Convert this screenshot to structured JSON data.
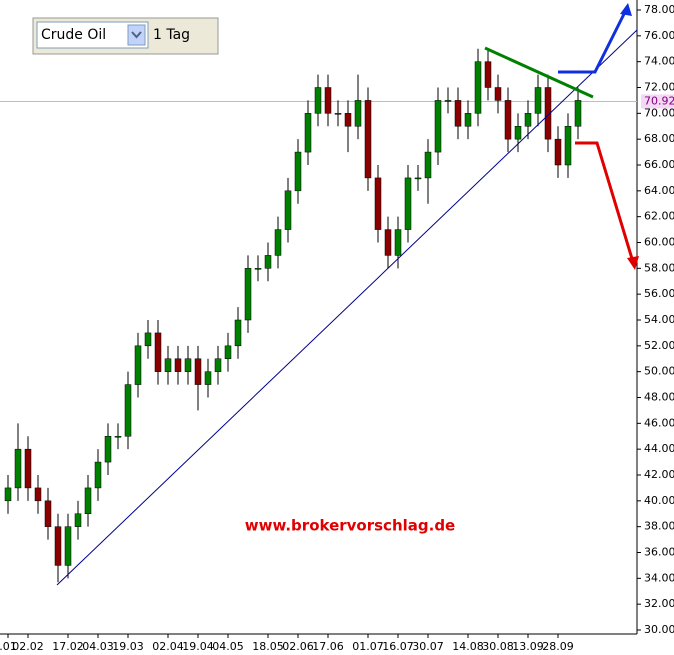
{
  "chart_data": {
    "type": "candlestick",
    "symbol": "Crude Oil",
    "interval": "1 Tag",
    "annotation": "www.brokervorschlag.de",
    "current_price": 70.92,
    "up_color": "#008000",
    "down_color": "#8b0000",
    "categories": [
      ".01",
      null,
      "02.02",
      null,
      null,
      null,
      "17.02",
      null,
      null,
      "04.03",
      null,
      null,
      "19.03",
      null,
      null,
      null,
      "02.04",
      null,
      null,
      "19.04",
      null,
      null,
      "04.05",
      null,
      null,
      null,
      "18.05",
      null,
      null,
      "02.06",
      null,
      null,
      "17.06",
      null,
      null,
      null,
      "01.07",
      null,
      null,
      "16.07",
      null,
      null,
      "30.07",
      null,
      null,
      null,
      "14.08",
      null,
      null,
      "30.08",
      null,
      null,
      "13.09",
      null,
      null,
      "28.09",
      null,
      null
    ],
    "open": [
      40,
      41,
      44,
      41,
      40,
      38,
      35,
      38,
      39,
      41,
      43,
      45,
      45,
      49,
      52,
      53,
      50,
      51,
      50,
      51,
      49,
      50,
      51,
      52,
      54,
      58,
      58,
      59,
      61,
      64,
      67,
      70,
      72,
      70,
      70,
      69,
      71,
      65,
      61,
      59,
      61,
      65,
      65,
      67,
      71,
      71,
      69,
      70,
      74,
      72,
      71,
      68,
      69,
      70,
      72,
      68,
      66,
      69
    ],
    "high": [
      42,
      46,
      45,
      42,
      41,
      39,
      39,
      40,
      42,
      44,
      46,
      46,
      50,
      53,
      54,
      54,
      52,
      52,
      52,
      52,
      51,
      52,
      53,
      55,
      59,
      59,
      60,
      62,
      65,
      68,
      71,
      73,
      73,
      71,
      71,
      73,
      72,
      66,
      62,
      62,
      66,
      66,
      68,
      72,
      72,
      72,
      71,
      75,
      75,
      73,
      72,
      70,
      71,
      73,
      73,
      69,
      70,
      72
    ],
    "low": [
      39,
      40,
      40,
      39,
      37,
      33.7,
      34,
      37,
      38,
      40,
      42,
      44,
      44,
      48,
      51,
      49,
      49,
      49,
      49,
      47,
      48,
      49,
      50,
      51,
      53,
      57,
      57,
      58,
      60,
      63,
      66,
      69,
      69,
      69,
      67,
      68,
      64,
      60,
      58,
      58,
      60,
      64,
      63,
      66,
      70,
      68,
      68,
      69,
      71,
      70,
      67,
      67,
      68,
      69,
      67,
      65,
      65,
      68
    ],
    "close": [
      41,
      44,
      41,
      40,
      38,
      35,
      38,
      39,
      41,
      43,
      45,
      45,
      49,
      52,
      53,
      50,
      51,
      50,
      51,
      49,
      50,
      51,
      52,
      54,
      58,
      58,
      59,
      61,
      64,
      67,
      70,
      72,
      70,
      70,
      69,
      71,
      65,
      61,
      59,
      61,
      65,
      65,
      67,
      71,
      71,
      69,
      70,
      74,
      72,
      71,
      68,
      69,
      70,
      72,
      68,
      66,
      69,
      71
    ],
    "ylim": [
      30,
      78
    ],
    "yticks": [
      {
        "value": 30,
        "label": "30.00"
      },
      {
        "value": 32,
        "label": "32.00"
      },
      {
        "value": 34,
        "label": "34.00"
      },
      {
        "value": 36,
        "label": "36.00"
      },
      {
        "value": 38,
        "label": "38.00"
      },
      {
        "value": 40,
        "label": "40.00"
      },
      {
        "value": 42,
        "label": "42.00"
      },
      {
        "value": 44,
        "label": "44.00"
      },
      {
        "value": 46,
        "label": "46.00"
      },
      {
        "value": 48,
        "label": "48.00"
      },
      {
        "value": 50,
        "label": "50.00"
      },
      {
        "value": 52,
        "label": "52.00"
      },
      {
        "value": 54,
        "label": "54.00"
      },
      {
        "value": 56,
        "label": "56.00"
      },
      {
        "value": 58,
        "label": "58.00"
      },
      {
        "value": 60,
        "label": "60.00"
      },
      {
        "value": 62,
        "label": "62.00"
      },
      {
        "value": 64,
        "label": "64.00"
      },
      {
        "value": 66,
        "label": "66.00"
      },
      {
        "value": 68,
        "label": "68.00"
      },
      {
        "value": 70,
        "label": "70.00"
      },
      {
        "value": 72,
        "label": "72.00"
      },
      {
        "value": 74,
        "label": "74.00"
      },
      {
        "value": 76,
        "label": "76.00"
      },
      {
        "value": 78,
        "label": "78.00"
      }
    ]
  }
}
